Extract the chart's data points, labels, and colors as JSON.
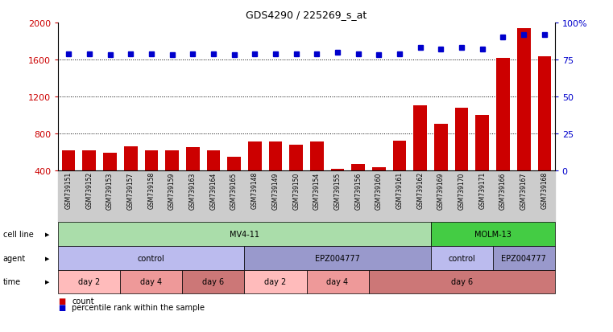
{
  "title": "GDS4290 / 225269_s_at",
  "samples": [
    "GSM739151",
    "GSM739152",
    "GSM739153",
    "GSM739157",
    "GSM739158",
    "GSM739159",
    "GSM739163",
    "GSM739164",
    "GSM739165",
    "GSM739148",
    "GSM739149",
    "GSM739150",
    "GSM739154",
    "GSM739155",
    "GSM739156",
    "GSM739160",
    "GSM739161",
    "GSM739162",
    "GSM739169",
    "GSM739170",
    "GSM739171",
    "GSM739166",
    "GSM739167",
    "GSM739168"
  ],
  "counts": [
    620,
    615,
    590,
    660,
    615,
    620,
    650,
    615,
    550,
    710,
    710,
    675,
    715,
    415,
    470,
    430,
    720,
    1100,
    900,
    1080,
    1000,
    1620,
    1940,
    1630
  ],
  "percentile": [
    79,
    79,
    78,
    79,
    79,
    78,
    79,
    79,
    78,
    79,
    79,
    79,
    79,
    80,
    79,
    78,
    79,
    83,
    82,
    83,
    82,
    90,
    92,
    92
  ],
  "ylim_left": [
    400,
    2000
  ],
  "ylim_right": [
    0,
    100
  ],
  "yticks_left": [
    400,
    800,
    1200,
    1600,
    2000
  ],
  "yticks_right": [
    0,
    25,
    50,
    75,
    100
  ],
  "bar_color": "#cc0000",
  "dot_color": "#0000cc",
  "tick_color_left": "#cc0000",
  "tick_color_right": "#0000cc",
  "cell_line_groups": [
    {
      "label": "MV4-11",
      "start": 0,
      "end": 18,
      "color": "#aaddaa"
    },
    {
      "label": "MOLM-13",
      "start": 18,
      "end": 24,
      "color": "#44cc44"
    }
  ],
  "agent_groups": [
    {
      "label": "control",
      "start": 0,
      "end": 9,
      "color": "#bbbbee"
    },
    {
      "label": "EPZ004777",
      "start": 9,
      "end": 18,
      "color": "#9999cc"
    },
    {
      "label": "control",
      "start": 18,
      "end": 21,
      "color": "#bbbbee"
    },
    {
      "label": "EPZ004777",
      "start": 21,
      "end": 24,
      "color": "#9999cc"
    }
  ],
  "time_groups": [
    {
      "label": "day 2",
      "start": 0,
      "end": 3,
      "color": "#ffbbbb"
    },
    {
      "label": "day 4",
      "start": 3,
      "end": 6,
      "color": "#ee9999"
    },
    {
      "label": "day 6",
      "start": 6,
      "end": 9,
      "color": "#cc7777"
    },
    {
      "label": "day 2",
      "start": 9,
      "end": 12,
      "color": "#ffbbbb"
    },
    {
      "label": "day 4",
      "start": 12,
      "end": 15,
      "color": "#ee9999"
    },
    {
      "label": "day 6",
      "start": 15,
      "end": 24,
      "color": "#cc7777"
    }
  ],
  "legend_count_label": "count",
  "legend_pct_label": "percentile rank within the sample"
}
